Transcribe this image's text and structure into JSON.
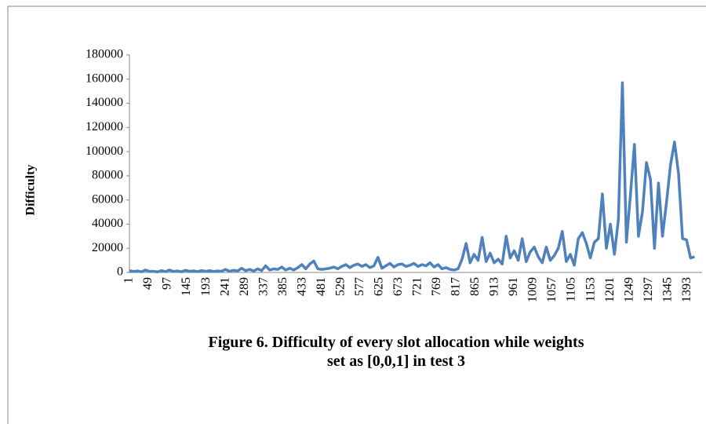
{
  "chart_data": {
    "type": "line",
    "title": "Figure 6. Difficulty of every slot allocation while weights set as [0,0,1] in test 3",
    "y_label": "Difficulty",
    "color": "#4f81bd",
    "x": [
      1,
      11,
      21,
      31,
      41,
      51,
      61,
      71,
      81,
      91,
      101,
      111,
      121,
      131,
      141,
      151,
      161,
      171,
      181,
      191,
      201,
      211,
      221,
      231,
      241,
      251,
      261,
      271,
      281,
      291,
      301,
      311,
      321,
      331,
      341,
      351,
      361,
      371,
      381,
      391,
      401,
      411,
      421,
      431,
      441,
      451,
      461,
      471,
      481,
      491,
      501,
      511,
      521,
      531,
      541,
      551,
      561,
      571,
      581,
      591,
      601,
      611,
      621,
      631,
      641,
      651,
      661,
      671,
      681,
      691,
      701,
      711,
      721,
      731,
      741,
      751,
      761,
      771,
      781,
      791,
      801,
      811,
      821,
      831,
      841,
      851,
      861,
      871,
      881,
      891,
      901,
      911,
      921,
      931,
      941,
      951,
      961,
      971,
      981,
      991,
      1001,
      1011,
      1021,
      1031,
      1041,
      1051,
      1061,
      1071,
      1081,
      1091,
      1101,
      1111,
      1121,
      1131,
      1141,
      1151,
      1161,
      1171,
      1181,
      1191,
      1201,
      1211,
      1221,
      1231,
      1241,
      1251,
      1261,
      1271,
      1281,
      1291,
      1301,
      1311,
      1321,
      1331,
      1341,
      1351,
      1361,
      1371,
      1381,
      1391,
      1401,
      1411
    ],
    "values": [
      1500,
      800,
      1200,
      600,
      2000,
      900,
      1000,
      500,
      1500,
      700,
      2000,
      800,
      1200,
      600,
      1800,
      900,
      1300,
      700,
      1600,
      900,
      1500,
      800,
      1200,
      1000,
      2500,
      900,
      1800,
      1200,
      3500,
      1500,
      2500,
      1200,
      3000,
      1500,
      5500,
      2000,
      3000,
      2500,
      4500,
      2000,
      3500,
      2000,
      4000,
      6500,
      3000,
      7000,
      9500,
      3000,
      2500,
      3000,
      3500,
      4500,
      3000,
      5000,
      6500,
      4000,
      6000,
      7000,
      5000,
      6500,
      4000,
      5500,
      12500,
      3500,
      5500,
      7500,
      4500,
      6500,
      7000,
      5000,
      6000,
      7500,
      5000,
      6500,
      5500,
      8000,
      4500,
      6500,
      3000,
      4000,
      2500,
      2000,
      3000,
      11000,
      24000,
      8000,
      15000,
      10000,
      29000,
      9000,
      16000,
      8000,
      11000,
      7000,
      30000,
      12000,
      18000,
      10000,
      28000,
      9000,
      17000,
      21000,
      13000,
      8000,
      21000,
      10000,
      14000,
      20000,
      34000,
      9000,
      15000,
      6000,
      28000,
      33000,
      24000,
      12000,
      25000,
      28000,
      65000,
      20000,
      40000,
      15000,
      44000,
      157000,
      25000,
      64000,
      106000,
      30000,
      50000,
      91000,
      77000,
      20000,
      74000,
      30000,
      58000,
      89000,
      108000,
      82000,
      28000,
      27000,
      12000,
      13000
    ],
    "xlim": [
      1,
      1420
    ],
    "xticks": [
      1,
      49,
      97,
      145,
      193,
      241,
      289,
      337,
      385,
      433,
      481,
      529,
      577,
      625,
      673,
      721,
      769,
      817,
      865,
      913,
      961,
      1009,
      1057,
      1105,
      1153,
      1201,
      1249,
      1297,
      1345,
      1393
    ],
    "ylim": [
      0,
      180000
    ],
    "yticks": [
      0,
      20000,
      40000,
      60000,
      80000,
      100000,
      120000,
      140000,
      160000,
      180000
    ],
    "grid": false
  }
}
